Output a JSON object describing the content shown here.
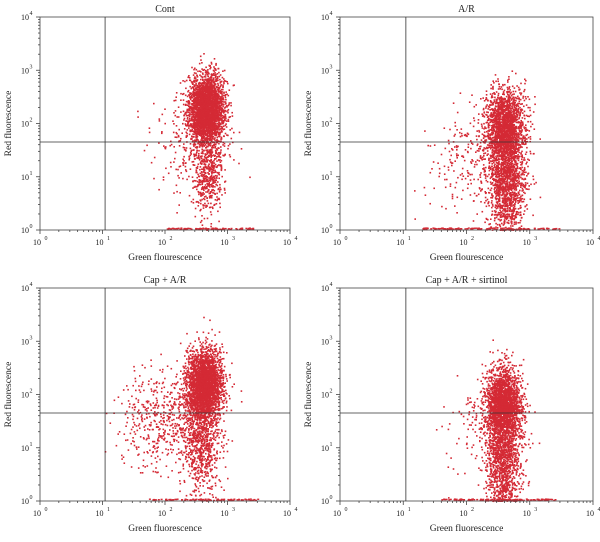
{
  "chart_data": [
    {
      "type": "scatter",
      "title": "Cont",
      "xlabel": "Green flourescence",
      "ylabel": "Red fluorescence",
      "xscale": "log",
      "yscale": "log",
      "xlim": [
        1,
        10000
      ],
      "ylim": [
        1,
        10000
      ],
      "x_ticks": [
        "10",
        "10",
        "10",
        "10",
        "10"
      ],
      "x_tick_exponents": [
        "0",
        "1",
        "2",
        "3",
        "4"
      ],
      "y_ticks": [
        "10",
        "10",
        "10",
        "10",
        "10"
      ],
      "y_tick_exponents": [
        "0",
        "1",
        "2",
        "3",
        "4"
      ],
      "quadrant_gate": {
        "x": 11,
        "y": 45
      },
      "color": "#d42a35",
      "populations": [
        {
          "x_center": 450,
          "y_center": 190,
          "x_spread_decades": 0.14,
          "y_spread_decades": 0.32,
          "count": 3000
        },
        {
          "x_center": 480,
          "y_center": 12,
          "x_spread_decades": 0.12,
          "y_spread_decades": 0.45,
          "count": 500
        },
        {
          "x_center": 300,
          "y_center": 40,
          "x_spread_decades": 0.35,
          "y_spread_decades": 0.4,
          "count": 250
        }
      ],
      "floor_band": {
        "x_from": 100,
        "x_to": 2500,
        "y": 1.05,
        "count": 90
      }
    },
    {
      "type": "scatter",
      "title": "A/R",
      "xlabel": "Green flourescence",
      "ylabel": "Red fluorescence",
      "xscale": "log",
      "yscale": "log",
      "xlim": [
        1,
        10000
      ],
      "ylim": [
        1,
        10000
      ],
      "x_ticks": [
        "10",
        "10",
        "10",
        "10",
        "10"
      ],
      "x_tick_exponents": [
        "0",
        "1",
        "2",
        "3",
        "4"
      ],
      "y_ticks": [
        "10",
        "10",
        "10",
        "10",
        "10"
      ],
      "y_tick_exponents": [
        "0",
        "1",
        "2",
        "3",
        "4"
      ],
      "quadrant_gate": {
        "x": 11,
        "y": 45
      },
      "color": "#d42a35",
      "populations": [
        {
          "x_center": 400,
          "y_center": 90,
          "x_spread_decades": 0.15,
          "y_spread_decades": 0.35,
          "count": 1800
        },
        {
          "x_center": 420,
          "y_center": 8,
          "x_spread_decades": 0.15,
          "y_spread_decades": 0.5,
          "count": 1400
        },
        {
          "x_center": 120,
          "y_center": 20,
          "x_spread_decades": 0.4,
          "y_spread_decades": 0.45,
          "count": 250
        }
      ],
      "floor_band": {
        "x_from": 20,
        "x_to": 3000,
        "y": 1.05,
        "count": 120
      }
    },
    {
      "type": "scatter",
      "title": "Cap + A/R",
      "xlabel": "Green fluorescence",
      "ylabel": "Red fluorescence",
      "xscale": "log",
      "yscale": "log",
      "xlim": [
        1,
        10000
      ],
      "ylim": [
        1,
        10000
      ],
      "x_ticks": [
        "10",
        "10",
        "10",
        "10",
        "10"
      ],
      "x_tick_exponents": [
        "0",
        "1",
        "2",
        "3",
        "4"
      ],
      "y_ticks": [
        "10",
        "10",
        "10",
        "10",
        "10"
      ],
      "y_tick_exponents": [
        "0",
        "1",
        "2",
        "3",
        "4"
      ],
      "quadrant_gate": {
        "x": 11,
        "y": 45
      },
      "color": "#d42a35",
      "populations": [
        {
          "x_center": 420,
          "y_center": 150,
          "x_spread_decades": 0.15,
          "y_spread_decades": 0.33,
          "count": 2800
        },
        {
          "x_center": 380,
          "y_center": 12,
          "x_spread_decades": 0.15,
          "y_spread_decades": 0.45,
          "count": 700
        },
        {
          "x_center": 90,
          "y_center": 35,
          "x_spread_decades": 0.4,
          "y_spread_decades": 0.45,
          "count": 500
        }
      ],
      "floor_band": {
        "x_from": 50,
        "x_to": 3000,
        "y": 1.05,
        "count": 90
      }
    },
    {
      "type": "scatter",
      "title": "Cap + A/R + sirtinol",
      "xlabel": "Green fluorescence",
      "ylabel": "Red fluorescence",
      "xscale": "log",
      "yscale": "log",
      "xlim": [
        1,
        10000
      ],
      "ylim": [
        1,
        10000
      ],
      "x_ticks": [
        "10",
        "10",
        "10",
        "10",
        "10"
      ],
      "x_tick_exponents": [
        "0",
        "1",
        "2",
        "3",
        "4"
      ],
      "y_ticks": [
        "10",
        "10",
        "10",
        "10",
        "10"
      ],
      "y_tick_exponents": [
        "0",
        "1",
        "2",
        "3",
        "4"
      ],
      "quadrant_gate": {
        "x": 11,
        "y": 45
      },
      "color": "#d42a35",
      "populations": [
        {
          "x_center": 370,
          "y_center": 70,
          "x_spread_decades": 0.14,
          "y_spread_decades": 0.33,
          "count": 2000
        },
        {
          "x_center": 380,
          "y_center": 7,
          "x_spread_decades": 0.14,
          "y_spread_decades": 0.5,
          "count": 1300
        },
        {
          "x_center": 200,
          "y_center": 20,
          "x_spread_decades": 0.3,
          "y_spread_decades": 0.4,
          "count": 200
        }
      ],
      "floor_band": {
        "x_from": 40,
        "x_to": 2500,
        "y": 1.05,
        "count": 110
      }
    }
  ]
}
